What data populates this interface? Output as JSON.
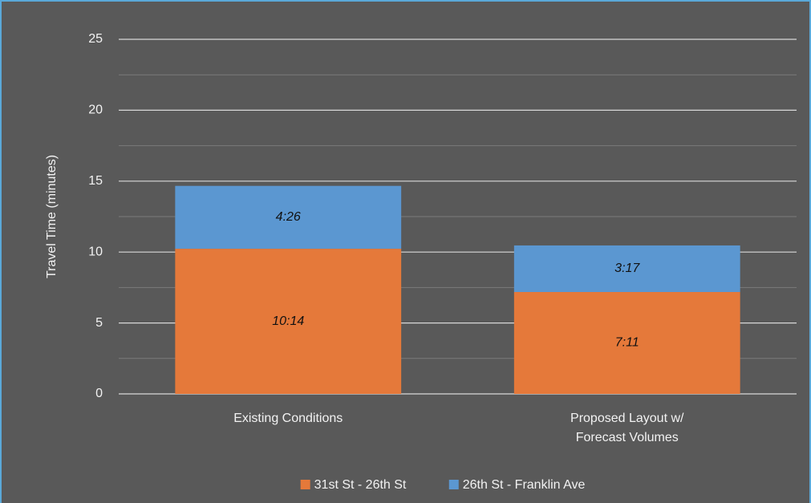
{
  "chart_data": {
    "type": "stacked_bar",
    "y_label": "Travel Time (minutes)",
    "categories": [
      "Existing Conditions",
      "Proposed Layout w/ Forecast Volumes"
    ],
    "series": [
      {
        "name": "31st St - 26th St",
        "color": "#e5793a",
        "values": [
          10.233,
          7.183
        ],
        "value_labels": [
          "10:14",
          "7:11"
        ]
      },
      {
        "name": "26th St - Franklin Ave",
        "color": "#5b97d1",
        "values": [
          4.433,
          3.283
        ],
        "value_labels": [
          "4:26",
          "3:17"
        ]
      }
    ],
    "ylim": [
      0,
      25
    ],
    "yticks": [
      0,
      5,
      10,
      15,
      20,
      25
    ],
    "minor_gridlines": [
      2.5,
      7.5,
      12.5,
      17.5,
      22.5
    ],
    "grid": true,
    "legend": "bottom"
  }
}
